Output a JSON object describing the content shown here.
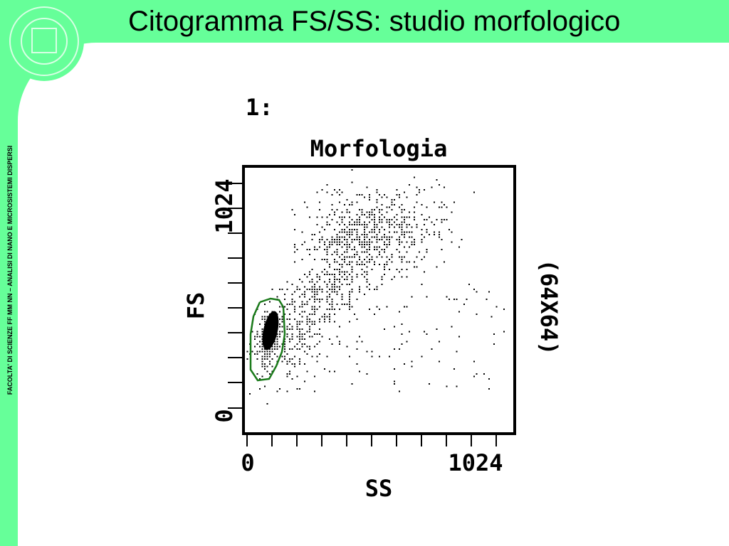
{
  "header": {
    "title": "Citogramma FS/SS: studio morfologico"
  },
  "sidebar": {
    "text": "FACOLTA' DI SCIENZE FF MM NN – ANALISI DI NANO E MICROSISTEMI DISPERSI"
  },
  "plot": {
    "number": "1:",
    "title": "Morfologia",
    "x_label": "SS",
    "y_label": "FS",
    "resolution": "(64X64)",
    "x_tick_labels": [
      "0",
      "1024"
    ],
    "y_tick_labels": [
      "0",
      "1024"
    ]
  }
}
